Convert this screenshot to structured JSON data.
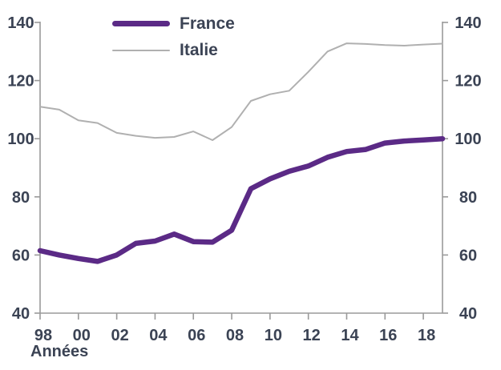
{
  "chart_data": {
    "type": "line",
    "title": "",
    "xlabel": "Années",
    "ylabel": "",
    "xlim": [
      1998,
      2019
    ],
    "ylim": [
      40,
      140
    ],
    "grid": false,
    "dual_y_axis": true,
    "legend_position": "top-left-inside",
    "y_ticks": [
      40,
      60,
      80,
      100,
      120,
      140
    ],
    "x_tick_years": [
      1998,
      2000,
      2002,
      2004,
      2006,
      2008,
      2010,
      2012,
      2014,
      2016,
      2018
    ],
    "x_tick_labels": [
      "98",
      "00",
      "02",
      "04",
      "06",
      "08",
      "10",
      "12",
      "14",
      "16",
      "18"
    ],
    "x": [
      1998,
      1999,
      2000,
      2001,
      2002,
      2003,
      2004,
      2005,
      2006,
      2007,
      2008,
      2009,
      2010,
      2011,
      2012,
      2013,
      2014,
      2015,
      2016,
      2017,
      2018,
      2019
    ],
    "series": [
      {
        "name": "France",
        "color": "#5b2a86",
        "stroke_width": 6.5,
        "values": [
          61.5,
          60.0,
          58.8,
          57.8,
          60.0,
          64.0,
          64.8,
          67.2,
          64.6,
          64.4,
          68.5,
          82.8,
          86.2,
          88.8,
          90.6,
          93.6,
          95.6,
          96.3,
          98.5,
          99.2,
          99.6,
          100.0
        ]
      },
      {
        "name": "Italie",
        "color": "#b0b0b0",
        "stroke_width": 2,
        "values": [
          111.0,
          110.0,
          106.3,
          105.4,
          102.0,
          101.0,
          100.3,
          100.6,
          102.5,
          99.5,
          104.0,
          113.0,
          115.3,
          116.5,
          123.0,
          130.0,
          132.8,
          132.6,
          132.2,
          132.0,
          132.4,
          132.7
        ]
      }
    ],
    "axis_color": "#9a9a9a",
    "text_color": "#3b4354"
  }
}
